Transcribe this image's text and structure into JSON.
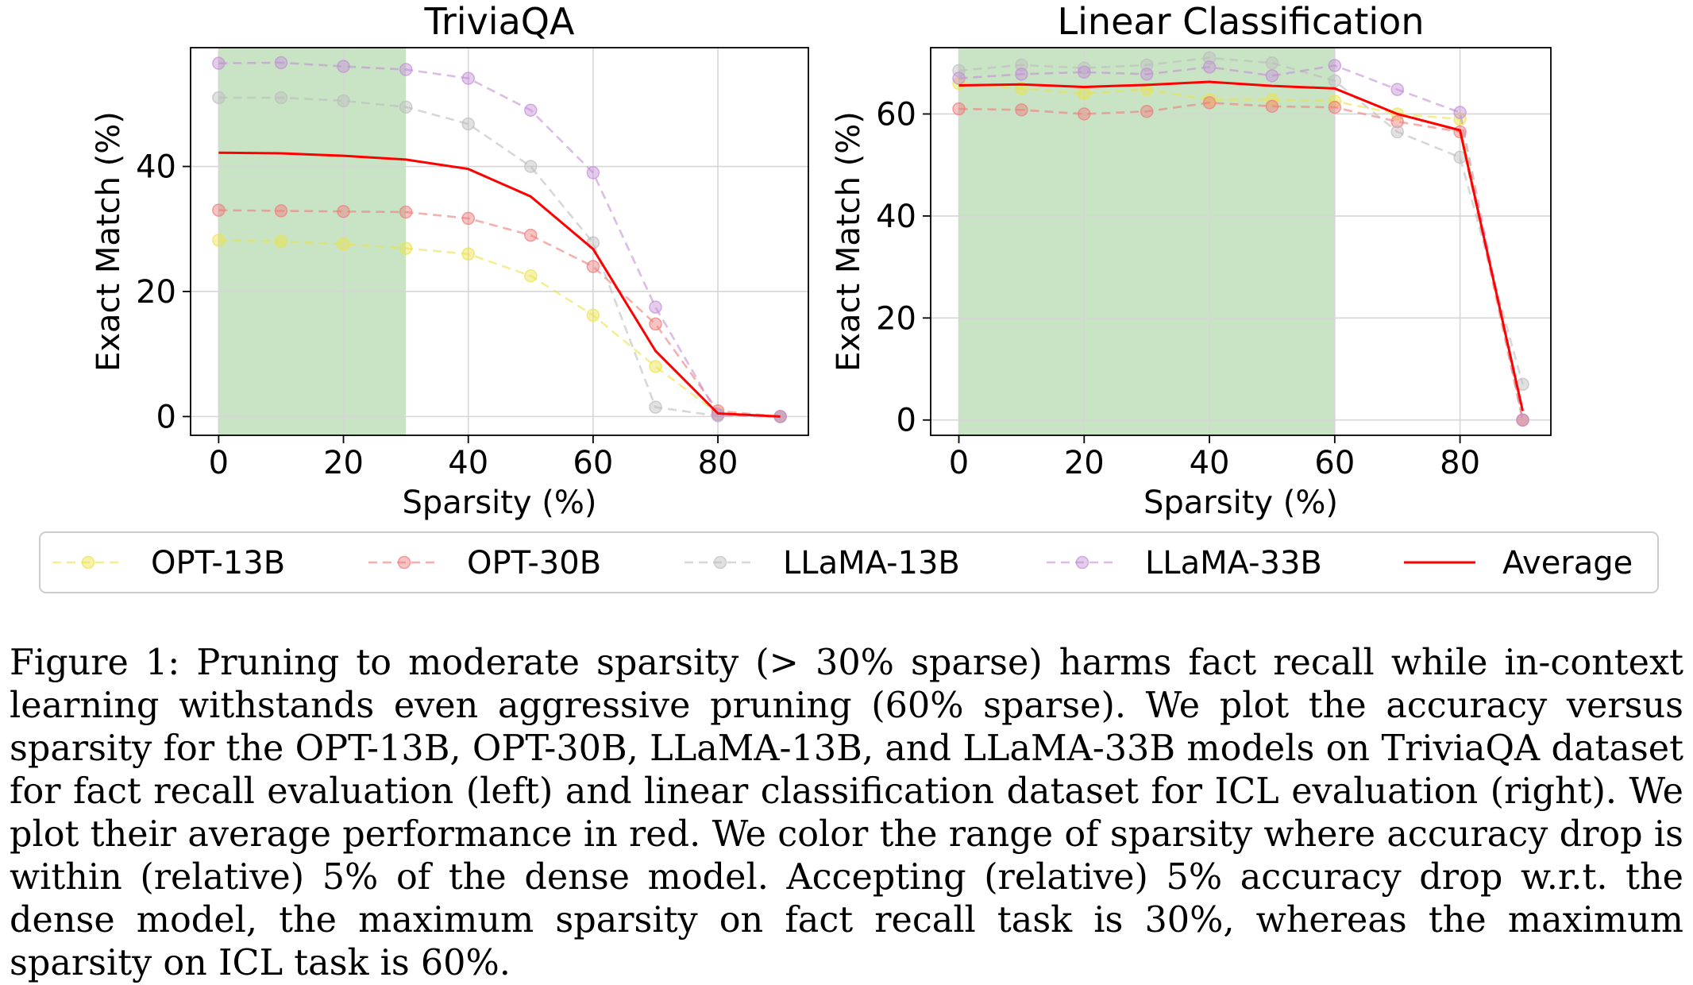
{
  "chart_data": [
    {
      "type": "line",
      "title": "TriviaQA",
      "xlabel": "Sparsity (%)",
      "ylabel": "Exact Match (%)",
      "xlim": [
        -4.5,
        94.5
      ],
      "ylim": [
        -3,
        59
      ],
      "xticks": [
        0,
        20,
        40,
        60,
        80
      ],
      "yticks": [
        0,
        20,
        40
      ],
      "grid": true,
      "shaded_region": [
        0,
        30
      ],
      "x": [
        0,
        10,
        20,
        30,
        40,
        50,
        60,
        70,
        80,
        90
      ],
      "series": [
        {
          "name": "OPT-13B",
          "values": [
            28.2,
            28.0,
            27.6,
            26.9,
            26.0,
            22.5,
            16.2,
            8.0,
            0.5,
            0.0
          ]
        },
        {
          "name": "OPT-30B",
          "values": [
            33.0,
            32.9,
            32.8,
            32.7,
            31.7,
            29.0,
            24.0,
            14.8,
            0.9,
            0.0
          ]
        },
        {
          "name": "LLaMA-13B",
          "values": [
            51.0,
            51.0,
            50.5,
            49.5,
            46.8,
            40.0,
            27.8,
            1.5,
            0.1,
            0.0
          ]
        },
        {
          "name": "LLaMA-33B",
          "values": [
            56.5,
            56.6,
            56.0,
            55.5,
            54.1,
            49.0,
            39.0,
            17.5,
            0.3,
            0.0
          ]
        },
        {
          "name": "Average",
          "values": [
            42.2,
            42.1,
            41.7,
            41.1,
            39.6,
            35.2,
            26.8,
            10.5,
            0.5,
            0.0
          ]
        }
      ]
    },
    {
      "type": "line",
      "title": "Linear Classification",
      "xlabel": "Sparsity (%)",
      "ylabel": "Exact Match (%)",
      "xlim": [
        -4.5,
        94.5
      ],
      "ylim": [
        -3,
        73
      ],
      "xticks": [
        0,
        20,
        40,
        60,
        80
      ],
      "yticks": [
        0,
        20,
        40,
        60
      ],
      "grid": true,
      "shaded_region": [
        0,
        60
      ],
      "x": [
        0,
        10,
        20,
        30,
        40,
        50,
        60,
        70,
        80,
        90
      ],
      "series": [
        {
          "name": "OPT-13B",
          "values": [
            66.0,
            65.0,
            64.0,
            64.8,
            62.8,
            62.8,
            62.5,
            60.0,
            59.0,
            0.0
          ]
        },
        {
          "name": "OPT-30B",
          "values": [
            61.0,
            60.8,
            60.0,
            60.5,
            62.2,
            61.5,
            61.3,
            58.5,
            56.5,
            0.0
          ]
        },
        {
          "name": "LLaMA-13B",
          "values": [
            68.5,
            69.6,
            69.0,
            69.6,
            71.0,
            70.0,
            66.5,
            56.5,
            51.5,
            7.0
          ]
        },
        {
          "name": "LLaMA-33B",
          "values": [
            67.0,
            67.8,
            68.2,
            67.8,
            69.2,
            67.5,
            69.5,
            64.8,
            60.3,
            0.0
          ]
        },
        {
          "name": "Average",
          "values": [
            65.6,
            65.8,
            65.3,
            65.7,
            66.3,
            65.5,
            65.0,
            60.0,
            56.8,
            1.8
          ]
        }
      ]
    }
  ],
  "series_colors": {
    "OPT-13B": "#ebe34a",
    "OPT-30B": "#f07a7a",
    "LLaMA-13B": "#bdbdbd",
    "LLaMA-33B": "#c38fd6",
    "Average": "#ff0000"
  },
  "shade_color": "#c9e4c5",
  "legend": {
    "placement": "bottom",
    "items": [
      "OPT-13B",
      "OPT-30B",
      "LLaMA-13B",
      "LLaMA-33B",
      "Average"
    ]
  },
  "caption": "Figure 1: Pruning to moderate sparsity (> 30% sparse) harms fact recall while in-context learning withstands even aggressive pruning (60% sparse). We plot the accuracy versus sparsity for the OPT-13B, OPT-30B, LLaMA-13B, and LLaMA-33B models on TriviaQA dataset for fact recall evaluation (left) and linear classification dataset for ICL evaluation (right). We plot their average performance in red. We color the range of sparsity where accuracy drop is within (relative) 5% of the dense model. Accepting (relative) 5% accuracy drop w.r.t. the dense model, the maximum sparsity on fact recall task is 30%, whereas the maximum sparsity on ICL task is 60%."
}
